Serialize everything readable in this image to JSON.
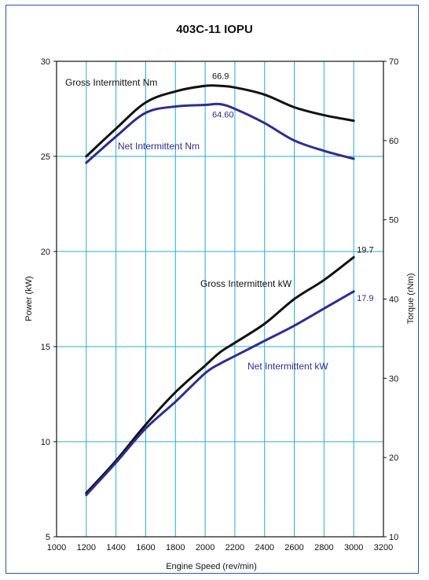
{
  "chart_data": {
    "type": "line",
    "title": "403C-11 IOPU",
    "xlabel": "Engine Speed (rev/min)",
    "ylabel_left": "Power (kW)",
    "ylabel_right": "Torque (rNm)",
    "xlim": [
      1000,
      3200
    ],
    "ylim_left": [
      5,
      30
    ],
    "ylim_right": [
      10,
      70
    ],
    "x_ticks": [
      "1000",
      "1200",
      "1400",
      "1600",
      "1800",
      "2000",
      "2200",
      "2400",
      "2600",
      "2800",
      "3000",
      "3200"
    ],
    "y_left_ticks": [
      "5",
      "10",
      "15",
      "20",
      "25",
      "30"
    ],
    "y_right_ticks": [
      "10",
      "20",
      "30",
      "40",
      "50",
      "60",
      "70"
    ],
    "grid": true,
    "grid_color": "#2aa8d8",
    "series": [
      {
        "name": "Gross Intermittent Nm",
        "axis": "right",
        "color": "#111111",
        "points": [
          [
            1200,
            58.0
          ],
          [
            1400,
            61.5
          ],
          [
            1600,
            64.8
          ],
          [
            1800,
            66.2
          ],
          [
            2000,
            66.9
          ],
          [
            2100,
            66.9
          ],
          [
            2200,
            66.7
          ],
          [
            2400,
            65.8
          ],
          [
            2600,
            64.2
          ],
          [
            2800,
            63.2
          ],
          [
            3000,
            62.5
          ]
        ]
      },
      {
        "name": "Net Intermittent Nm",
        "axis": "right",
        "color": "#2e2e8c",
        "points": [
          [
            1200,
            57.2
          ],
          [
            1400,
            60.5
          ],
          [
            1600,
            63.5
          ],
          [
            1800,
            64.3
          ],
          [
            2000,
            64.5
          ],
          [
            2100,
            64.6
          ],
          [
            2200,
            64.0
          ],
          [
            2400,
            62.2
          ],
          [
            2600,
            60.0
          ],
          [
            2800,
            58.7
          ],
          [
            3000,
            57.7
          ]
        ]
      },
      {
        "name": "Gross Intermittent kW",
        "axis": "left",
        "color": "#111111",
        "points": [
          [
            1200,
            7.3
          ],
          [
            1400,
            9.0
          ],
          [
            1600,
            10.9
          ],
          [
            1800,
            12.6
          ],
          [
            2000,
            14.0
          ],
          [
            2100,
            14.7
          ],
          [
            2200,
            15.2
          ],
          [
            2400,
            16.2
          ],
          [
            2600,
            17.5
          ],
          [
            2800,
            18.5
          ],
          [
            3000,
            19.7
          ]
        ]
      },
      {
        "name": "Net Intermittent kW",
        "axis": "left",
        "color": "#2e2e8c",
        "points": [
          [
            1200,
            7.2
          ],
          [
            1400,
            8.9
          ],
          [
            1600,
            10.7
          ],
          [
            1800,
            12.1
          ],
          [
            2000,
            13.6
          ],
          [
            2100,
            14.1
          ],
          [
            2200,
            14.5
          ],
          [
            2400,
            15.3
          ],
          [
            2600,
            16.1
          ],
          [
            2800,
            17.0
          ],
          [
            3000,
            17.9
          ]
        ]
      }
    ],
    "annotations": [
      {
        "text": "66.9",
        "x": 2100,
        "y": 66.9,
        "axis": "right",
        "color": "#111111"
      },
      {
        "text": "64.60",
        "x": 2100,
        "y": 64.6,
        "axis": "right",
        "color": "#2e2e8c"
      },
      {
        "text": "19.7",
        "x": 3000,
        "y": 19.7,
        "axis": "left",
        "color": "#111111"
      },
      {
        "text": "17.9",
        "x": 3000,
        "y": 17.9,
        "axis": "left",
        "color": "#2e2e8c"
      }
    ]
  }
}
